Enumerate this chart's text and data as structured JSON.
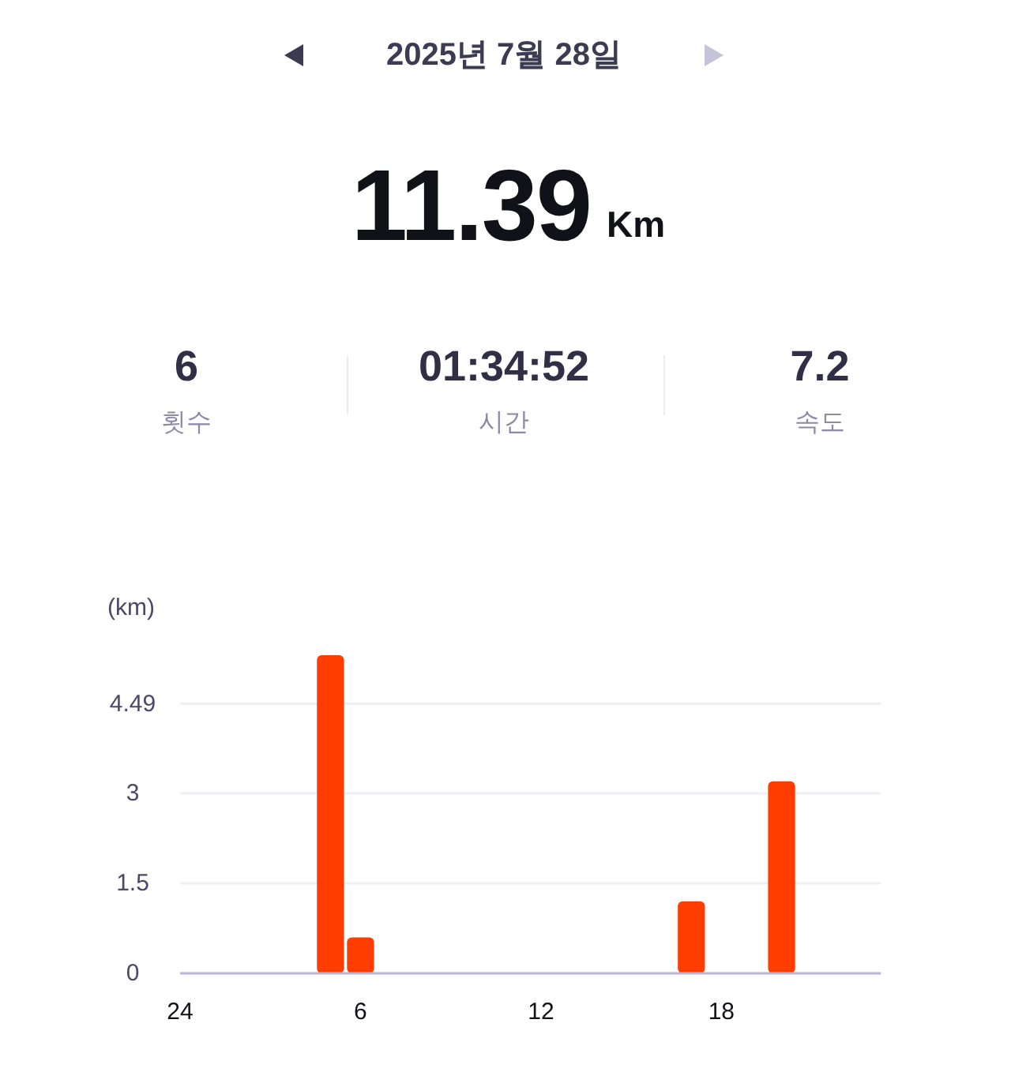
{
  "chart_data": {
    "type": "bar",
    "title": "2025년 7월 28일",
    "annotations": [
      "11.39",
      "Km",
      "6",
      "횟수",
      "01:34:52",
      "시간",
      "7.2",
      "속도"
    ],
    "ylabel": "(km)",
    "categories": [
      "24",
      null,
      null,
      null,
      null,
      null,
      "6",
      null,
      null,
      null,
      null,
      null,
      "12",
      null,
      null,
      null,
      null,
      null,
      "18",
      null,
      null,
      null,
      null,
      null
    ],
    "values": [
      null,
      null,
      null,
      null,
      null,
      5.3,
      0.6,
      null,
      null,
      null,
      null,
      null,
      null,
      null,
      null,
      null,
      null,
      1.2,
      null,
      null,
      3.2,
      null,
      null,
      null
    ],
    "color": "#ff3d00",
    "ylim": [
      0,
      5.3
    ],
    "yticks": [
      0,
      1.5,
      3,
      4.49
    ],
    "grid": "y"
  }
}
